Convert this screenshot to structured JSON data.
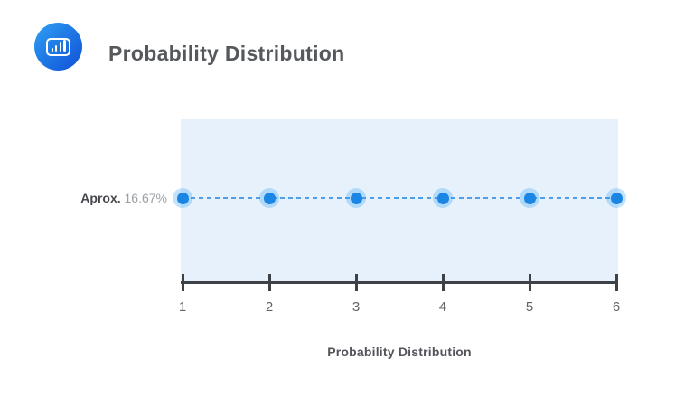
{
  "header": {
    "title": "Probability Distribution",
    "icon": "bar-chart-icon"
  },
  "chart_data": {
    "type": "scatter",
    "title": "Probability Distribution",
    "x": [
      1,
      2,
      3,
      4,
      5,
      6
    ],
    "y": [
      16.67,
      16.67,
      16.67,
      16.67,
      16.67,
      16.67
    ],
    "y_unit": "%",
    "x_ticks": [
      "1",
      "2",
      "3",
      "4",
      "5",
      "6"
    ],
    "xlim": [
      1,
      6
    ],
    "xlabel": "Probability Distribution",
    "ylabel": "",
    "annotation_label": "Aprox.",
    "annotation_value": "16.67%",
    "line_style": "dashed",
    "marker": "circle-with-halo",
    "grid": false,
    "legend_position": "none",
    "colors": {
      "plot_background": "#e7f1fb",
      "marker": "#1b85e3",
      "marker_halo": "rgba(33,150,243,0.27)",
      "line": "#4e9fe9",
      "axis": "#3e4145",
      "icon_gradient_start": "#2e9ff2",
      "icon_gradient_end": "#1050d8"
    }
  }
}
